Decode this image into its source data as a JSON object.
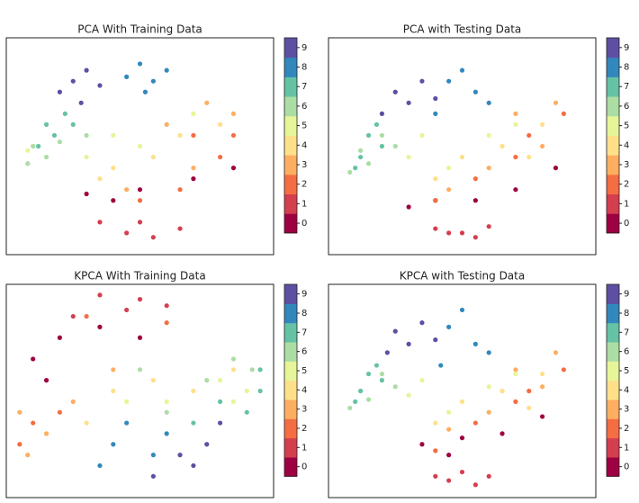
{
  "chart_data": [
    {
      "type": "scatter",
      "title": "PCA With Training Data",
      "xlim": [
        0,
        100
      ],
      "ylim": [
        0,
        100
      ],
      "series": [
        {
          "name": "0",
          "color": "#9e0142",
          "x": [
            30,
            50,
            70,
            85,
            40
          ],
          "y": [
            28,
            30,
            35,
            40,
            25
          ]
        },
        {
          "name": "1",
          "color": "#d53e4f",
          "x": [
            45,
            55,
            35,
            65,
            50
          ],
          "y": [
            10,
            8,
            15,
            12,
            15
          ]
        },
        {
          "name": "2",
          "color": "#f46d43",
          "x": [
            70,
            80,
            50,
            65,
            85
          ],
          "y": [
            55,
            45,
            25,
            30,
            55
          ]
        },
        {
          "name": "3",
          "color": "#fdae61",
          "x": [
            60,
            75,
            85,
            45,
            70
          ],
          "y": [
            60,
            70,
            65,
            30,
            40
          ]
        },
        {
          "name": "4",
          "color": "#fee08b",
          "x": [
            40,
            55,
            65,
            80,
            35
          ],
          "y": [
            40,
            45,
            55,
            60,
            35
          ]
        },
        {
          "name": "5",
          "color": "#e6f598",
          "x": [
            8,
            30,
            40,
            50,
            70
          ],
          "y": [
            48,
            45,
            55,
            50,
            65
          ]
        },
        {
          "name": "6",
          "color": "#abdda4",
          "x": [
            10,
            20,
            15,
            30,
            8
          ],
          "y": [
            50,
            52,
            45,
            55,
            42
          ]
        },
        {
          "name": "7",
          "color": "#66c2a5",
          "x": [
            15,
            18,
            22,
            12,
            25
          ],
          "y": [
            60,
            55,
            65,
            50,
            60
          ]
        },
        {
          "name": "8",
          "color": "#3288bd",
          "x": [
            50,
            55,
            45,
            60,
            52
          ],
          "y": [
            88,
            80,
            82,
            85,
            75
          ]
        },
        {
          "name": "9",
          "color": "#5e4fa2",
          "x": [
            25,
            30,
            20,
            35,
            28
          ],
          "y": [
            80,
            85,
            75,
            78,
            70
          ]
        }
      ]
    },
    {
      "type": "scatter",
      "title": "PCA with Testing Data",
      "xlim": [
        0,
        100
      ],
      "ylim": [
        0,
        100
      ],
      "series": [
        {
          "name": "0",
          "color": "#9e0142",
          "x": [
            40,
            55,
            70,
            85,
            30
          ],
          "y": [
            25,
            25,
            30,
            40,
            22
          ]
        },
        {
          "name": "1",
          "color": "#d53e4f",
          "x": [
            45,
            55,
            40,
            60,
            50
          ],
          "y": [
            10,
            8,
            12,
            13,
            10
          ]
        },
        {
          "name": "2",
          "color": "#f46d43",
          "x": [
            75,
            88,
            55,
            70,
            40
          ],
          "y": [
            55,
            65,
            35,
            45,
            25
          ]
        },
        {
          "name": "3",
          "color": "#fdae61",
          "x": [
            70,
            85,
            60,
            80,
            45
          ],
          "y": [
            65,
            70,
            40,
            50,
            30
          ]
        },
        {
          "name": "4",
          "color": "#fee08b",
          "x": [
            50,
            65,
            80,
            40,
            75
          ],
          "y": [
            45,
            50,
            60,
            35,
            45
          ]
        },
        {
          "name": "5",
          "color": "#e6f598",
          "x": [
            30,
            45,
            60,
            70,
            35
          ],
          "y": [
            45,
            40,
            55,
            60,
            55
          ]
        },
        {
          "name": "6",
          "color": "#abdda4",
          "x": [
            8,
            12,
            15,
            20,
            25
          ],
          "y": [
            38,
            48,
            42,
            55,
            50
          ]
        },
        {
          "name": "7",
          "color": "#66c2a5",
          "x": [
            12,
            15,
            18,
            10,
            20
          ],
          "y": [
            45,
            55,
            60,
            40,
            50
          ]
        },
        {
          "name": "8",
          "color": "#3288bd",
          "x": [
            45,
            55,
            50,
            60,
            40
          ],
          "y": [
            80,
            75,
            85,
            70,
            65
          ]
        },
        {
          "name": "9",
          "color": "#5e4fa2",
          "x": [
            25,
            30,
            20,
            35,
            40
          ],
          "y": [
            75,
            70,
            65,
            80,
            72
          ]
        }
      ]
    },
    {
      "type": "scatter",
      "title": "KPCA With Training Data",
      "xlim": [
        0,
        100
      ],
      "ylim": [
        0,
        100
      ],
      "series": [
        {
          "name": "0",
          "color": "#9e0142",
          "x": [
            10,
            20,
            35,
            50,
            15
          ],
          "y": [
            65,
            75,
            80,
            75,
            55
          ]
        },
        {
          "name": "1",
          "color": "#d53e4f",
          "x": [
            35,
            50,
            60,
            25,
            45
          ],
          "y": [
            95,
            93,
            90,
            85,
            88
          ]
        },
        {
          "name": "2",
          "color": "#f46d43",
          "x": [
            10,
            5,
            30,
            60,
            20
          ],
          "y": [
            35,
            25,
            85,
            82,
            40
          ]
        },
        {
          "name": "3",
          "color": "#fdae61",
          "x": [
            8,
            15,
            25,
            40,
            5
          ],
          "y": [
            20,
            30,
            45,
            60,
            40
          ]
        },
        {
          "name": "4",
          "color": "#fee08b",
          "x": [
            40,
            55,
            85,
            30,
            70
          ],
          "y": [
            50,
            55,
            60,
            35,
            50
          ]
        },
        {
          "name": "5",
          "color": "#e6f598",
          "x": [
            80,
            90,
            45,
            60,
            85
          ],
          "y": [
            55,
            50,
            45,
            45,
            45
          ]
        },
        {
          "name": "6",
          "color": "#abdda4",
          "x": [
            85,
            92,
            75,
            60,
            50
          ],
          "y": [
            65,
            60,
            55,
            40,
            60
          ]
        },
        {
          "name": "7",
          "color": "#66c2a5",
          "x": [
            95,
            90,
            80,
            70,
            95
          ],
          "y": [
            50,
            40,
            45,
            35,
            60
          ]
        },
        {
          "name": "8",
          "color": "#3288bd",
          "x": [
            40,
            55,
            35,
            60,
            45
          ],
          "y": [
            25,
            20,
            15,
            30,
            35
          ]
        },
        {
          "name": "9",
          "color": "#5e4fa2",
          "x": [
            65,
            75,
            55,
            80,
            70
          ],
          "y": [
            20,
            25,
            10,
            35,
            15
          ]
        }
      ]
    },
    {
      "type": "scatter",
      "title": "KPCA with Testing Data",
      "xlim": [
        0,
        100
      ],
      "ylim": [
        0,
        100
      ],
      "series": [
        {
          "name": "0",
          "color": "#9e0142",
          "x": [
            35,
            50,
            65,
            80,
            45
          ],
          "y": [
            25,
            28,
            30,
            38,
            20
          ]
        },
        {
          "name": "1",
          "color": "#d53e4f",
          "x": [
            45,
            55,
            40,
            60,
            50
          ],
          "y": [
            8,
            6,
            10,
            10,
            12
          ]
        },
        {
          "name": "2",
          "color": "#f46d43",
          "x": [
            75,
            88,
            55,
            70,
            40
          ],
          "y": [
            50,
            60,
            35,
            45,
            22
          ]
        },
        {
          "name": "3",
          "color": "#fdae61",
          "x": [
            70,
            85,
            60,
            80,
            45
          ],
          "y": [
            60,
            68,
            40,
            52,
            32
          ]
        },
        {
          "name": "4",
          "color": "#fee08b",
          "x": [
            50,
            65,
            80,
            40,
            75
          ],
          "y": [
            45,
            50,
            58,
            35,
            42
          ]
        },
        {
          "name": "5",
          "color": "#e6f598",
          "x": [
            30,
            45,
            60,
            70,
            35
          ],
          "y": [
            48,
            40,
            52,
            58,
            55
          ]
        },
        {
          "name": "6",
          "color": "#abdda4",
          "x": [
            8,
            12,
            15,
            20,
            25
          ],
          "y": [
            42,
            50,
            46,
            58,
            52
          ]
        },
        {
          "name": "7",
          "color": "#66c2a5",
          "x": [
            12,
            15,
            18,
            10,
            20
          ],
          "y": [
            50,
            58,
            62,
            45,
            55
          ]
        },
        {
          "name": "8",
          "color": "#3288bd",
          "x": [
            45,
            55,
            50,
            60,
            42
          ],
          "y": [
            80,
            72,
            88,
            68,
            62
          ]
        },
        {
          "name": "9",
          "color": "#5e4fa2",
          "x": [
            25,
            30,
            22,
            35,
            40
          ],
          "y": [
            78,
            72,
            68,
            82,
            74
          ]
        }
      ]
    }
  ]
}
